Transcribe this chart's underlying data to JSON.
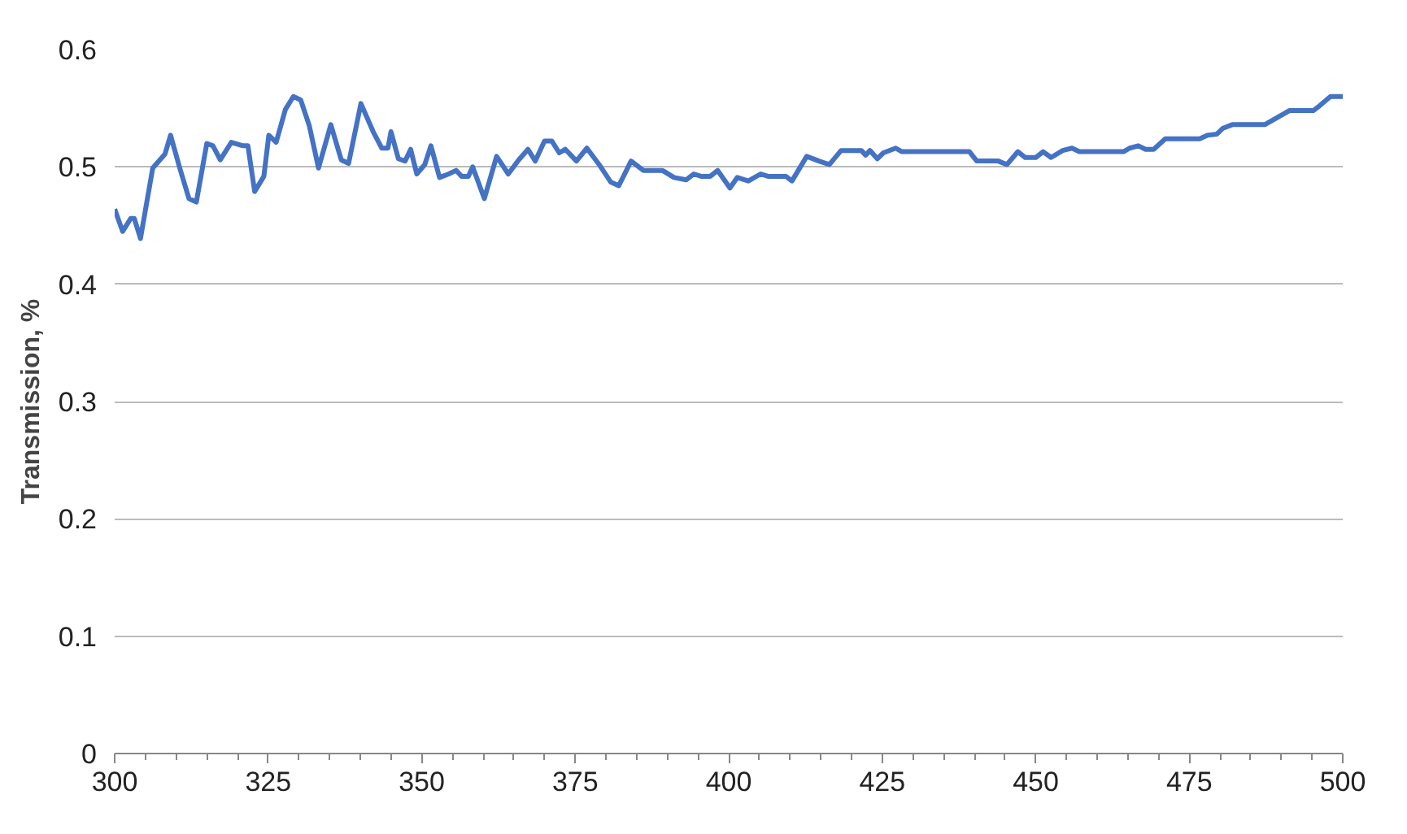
{
  "chart_data": {
    "type": "line",
    "ylabel": "Transmission, %",
    "x": [
      300,
      301.3,
      302.6,
      303.2,
      304.2,
      306.2,
      308.2,
      309.1,
      310.6,
      312.1,
      313.3,
      315,
      316,
      317.2,
      319,
      320.9,
      321.7,
      322.8,
      324.3,
      325.1,
      326.3,
      327.8,
      329.1,
      330.3,
      331.7,
      333.2,
      335.2,
      336.9,
      338.1,
      340.1,
      342.1,
      343.5,
      344.5,
      345,
      346.2,
      347.3,
      348.2,
      349.2,
      350.5,
      351.5,
      352.9,
      354.4,
      355.6,
      356.5,
      357.6,
      358.3,
      360.2,
      362.2,
      364.1,
      365.8,
      367.3,
      368.5,
      370,
      371.2,
      372.4,
      373.4,
      375.2,
      376.9,
      378.9,
      380.8,
      382.1,
      384.1,
      386.1,
      389.2,
      391.1,
      393.1,
      394.3,
      395.5,
      397,
      398.2,
      400.2,
      401.4,
      403.2,
      405.2,
      406.4,
      409.3,
      410.3,
      412.7,
      414.7,
      416.4,
      418.3,
      421.6,
      422.3,
      423,
      424.2,
      425.2,
      427.2,
      428.2,
      434.3,
      439.2,
      440.4,
      443.9,
      445.3,
      447.1,
      448.3,
      450,
      451.2,
      452.5,
      454.4,
      455.9,
      457.1,
      464.3,
      465.3,
      466.7,
      467.9,
      469.2,
      471.1,
      476.7,
      478,
      479.5,
      480.5,
      482,
      487.3,
      491.3,
      495.2,
      496.2,
      498,
      500
    ],
    "series": [
      {
        "color": "#4472c4",
        "values": [
          0.464,
          0.445,
          0.456,
          0.456,
          0.439,
          0.499,
          0.511,
          0.527,
          0.499,
          0.473,
          0.47,
          0.52,
          0.518,
          0.506,
          0.521,
          0.518,
          0.518,
          0.479,
          0.492,
          0.527,
          0.521,
          0.549,
          0.56,
          0.557,
          0.535,
          0.499,
          0.536,
          0.506,
          0.503,
          0.554,
          0.53,
          0.516,
          0.516,
          0.53,
          0.507,
          0.505,
          0.515,
          0.494,
          0.502,
          0.518,
          0.491,
          0.494,
          0.497,
          0.492,
          0.492,
          0.5,
          0.473,
          0.509,
          0.494,
          0.506,
          0.515,
          0.505,
          0.522,
          0.522,
          0.512,
          0.515,
          0.505,
          0.516,
          0.502,
          0.487,
          0.484,
          0.505,
          0.497,
          0.497,
          0.491,
          0.489,
          0.494,
          0.492,
          0.492,
          0.497,
          0.482,
          0.491,
          0.488,
          0.494,
          0.492,
          0.492,
          0.488,
          0.509,
          0.505,
          0.502,
          0.514,
          0.514,
          0.51,
          0.514,
          0.507,
          0.512,
          0.516,
          0.513,
          0.513,
          0.513,
          0.505,
          0.505,
          0.502,
          0.513,
          0.508,
          0.508,
          0.513,
          0.508,
          0.514,
          0.516,
          0.513,
          0.513,
          0.516,
          0.518,
          0.515,
          0.515,
          0.524,
          0.524,
          0.527,
          0.528,
          0.533,
          0.536,
          0.536,
          0.548,
          0.548,
          0.552,
          0.56,
          0.56
        ]
      }
    ],
    "xlim": [
      300,
      500
    ],
    "xticks": [
      300,
      325,
      350,
      375,
      400,
      425,
      450,
      475,
      500
    ],
    "ylim": [
      0,
      0.6
    ],
    "yticks": [
      0,
      0.1,
      0.2,
      0.3,
      0.4,
      0.5,
      0.6
    ],
    "grid": "y",
    "marker": "none",
    "line_style": "solid"
  }
}
